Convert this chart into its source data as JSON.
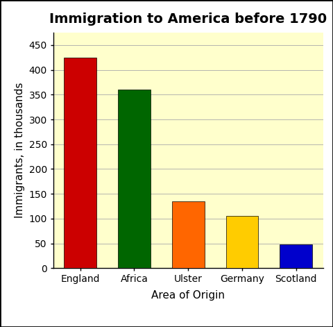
{
  "title": "Immigration to America before 1790",
  "xlabel": "Area of Origin",
  "ylabel": "Immigrants, in thousands",
  "categories": [
    "England",
    "Africa",
    "Ulster",
    "Germany",
    "Scotland"
  ],
  "values": [
    425,
    360,
    135,
    105,
    48
  ],
  "bar_colors": [
    "#cc0000",
    "#006600",
    "#ff6600",
    "#ffcc00",
    "#0000cc"
  ],
  "ylim": [
    0,
    475
  ],
  "yticks": [
    0,
    50,
    100,
    150,
    200,
    250,
    300,
    350,
    400,
    450
  ],
  "background_color": "#ffffcc",
  "outer_background": "#ffffff",
  "title_fontsize": 14,
  "axis_label_fontsize": 11,
  "tick_fontsize": 10,
  "bar_width": 0.6,
  "border_color": "#000000",
  "grid_color": "#aaaaaa"
}
